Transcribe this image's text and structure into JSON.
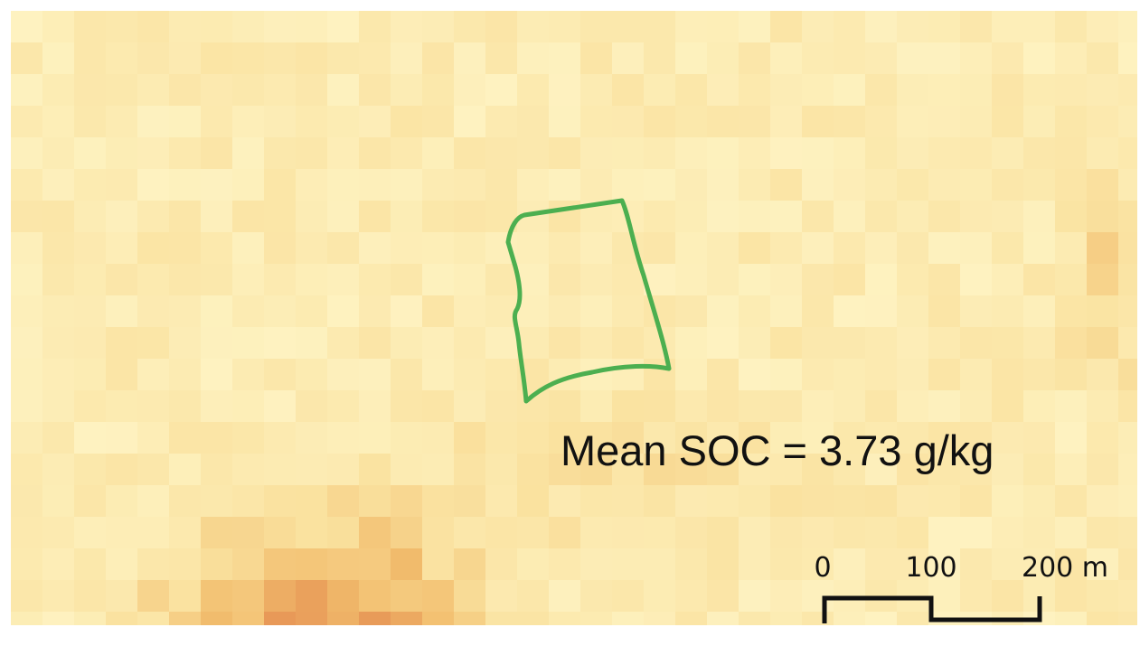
{
  "annotation": "Mean SOC = 3.73 g/kg",
  "scale_bar": {
    "labels": [
      "0",
      "100",
      "200 m"
    ]
  }
}
